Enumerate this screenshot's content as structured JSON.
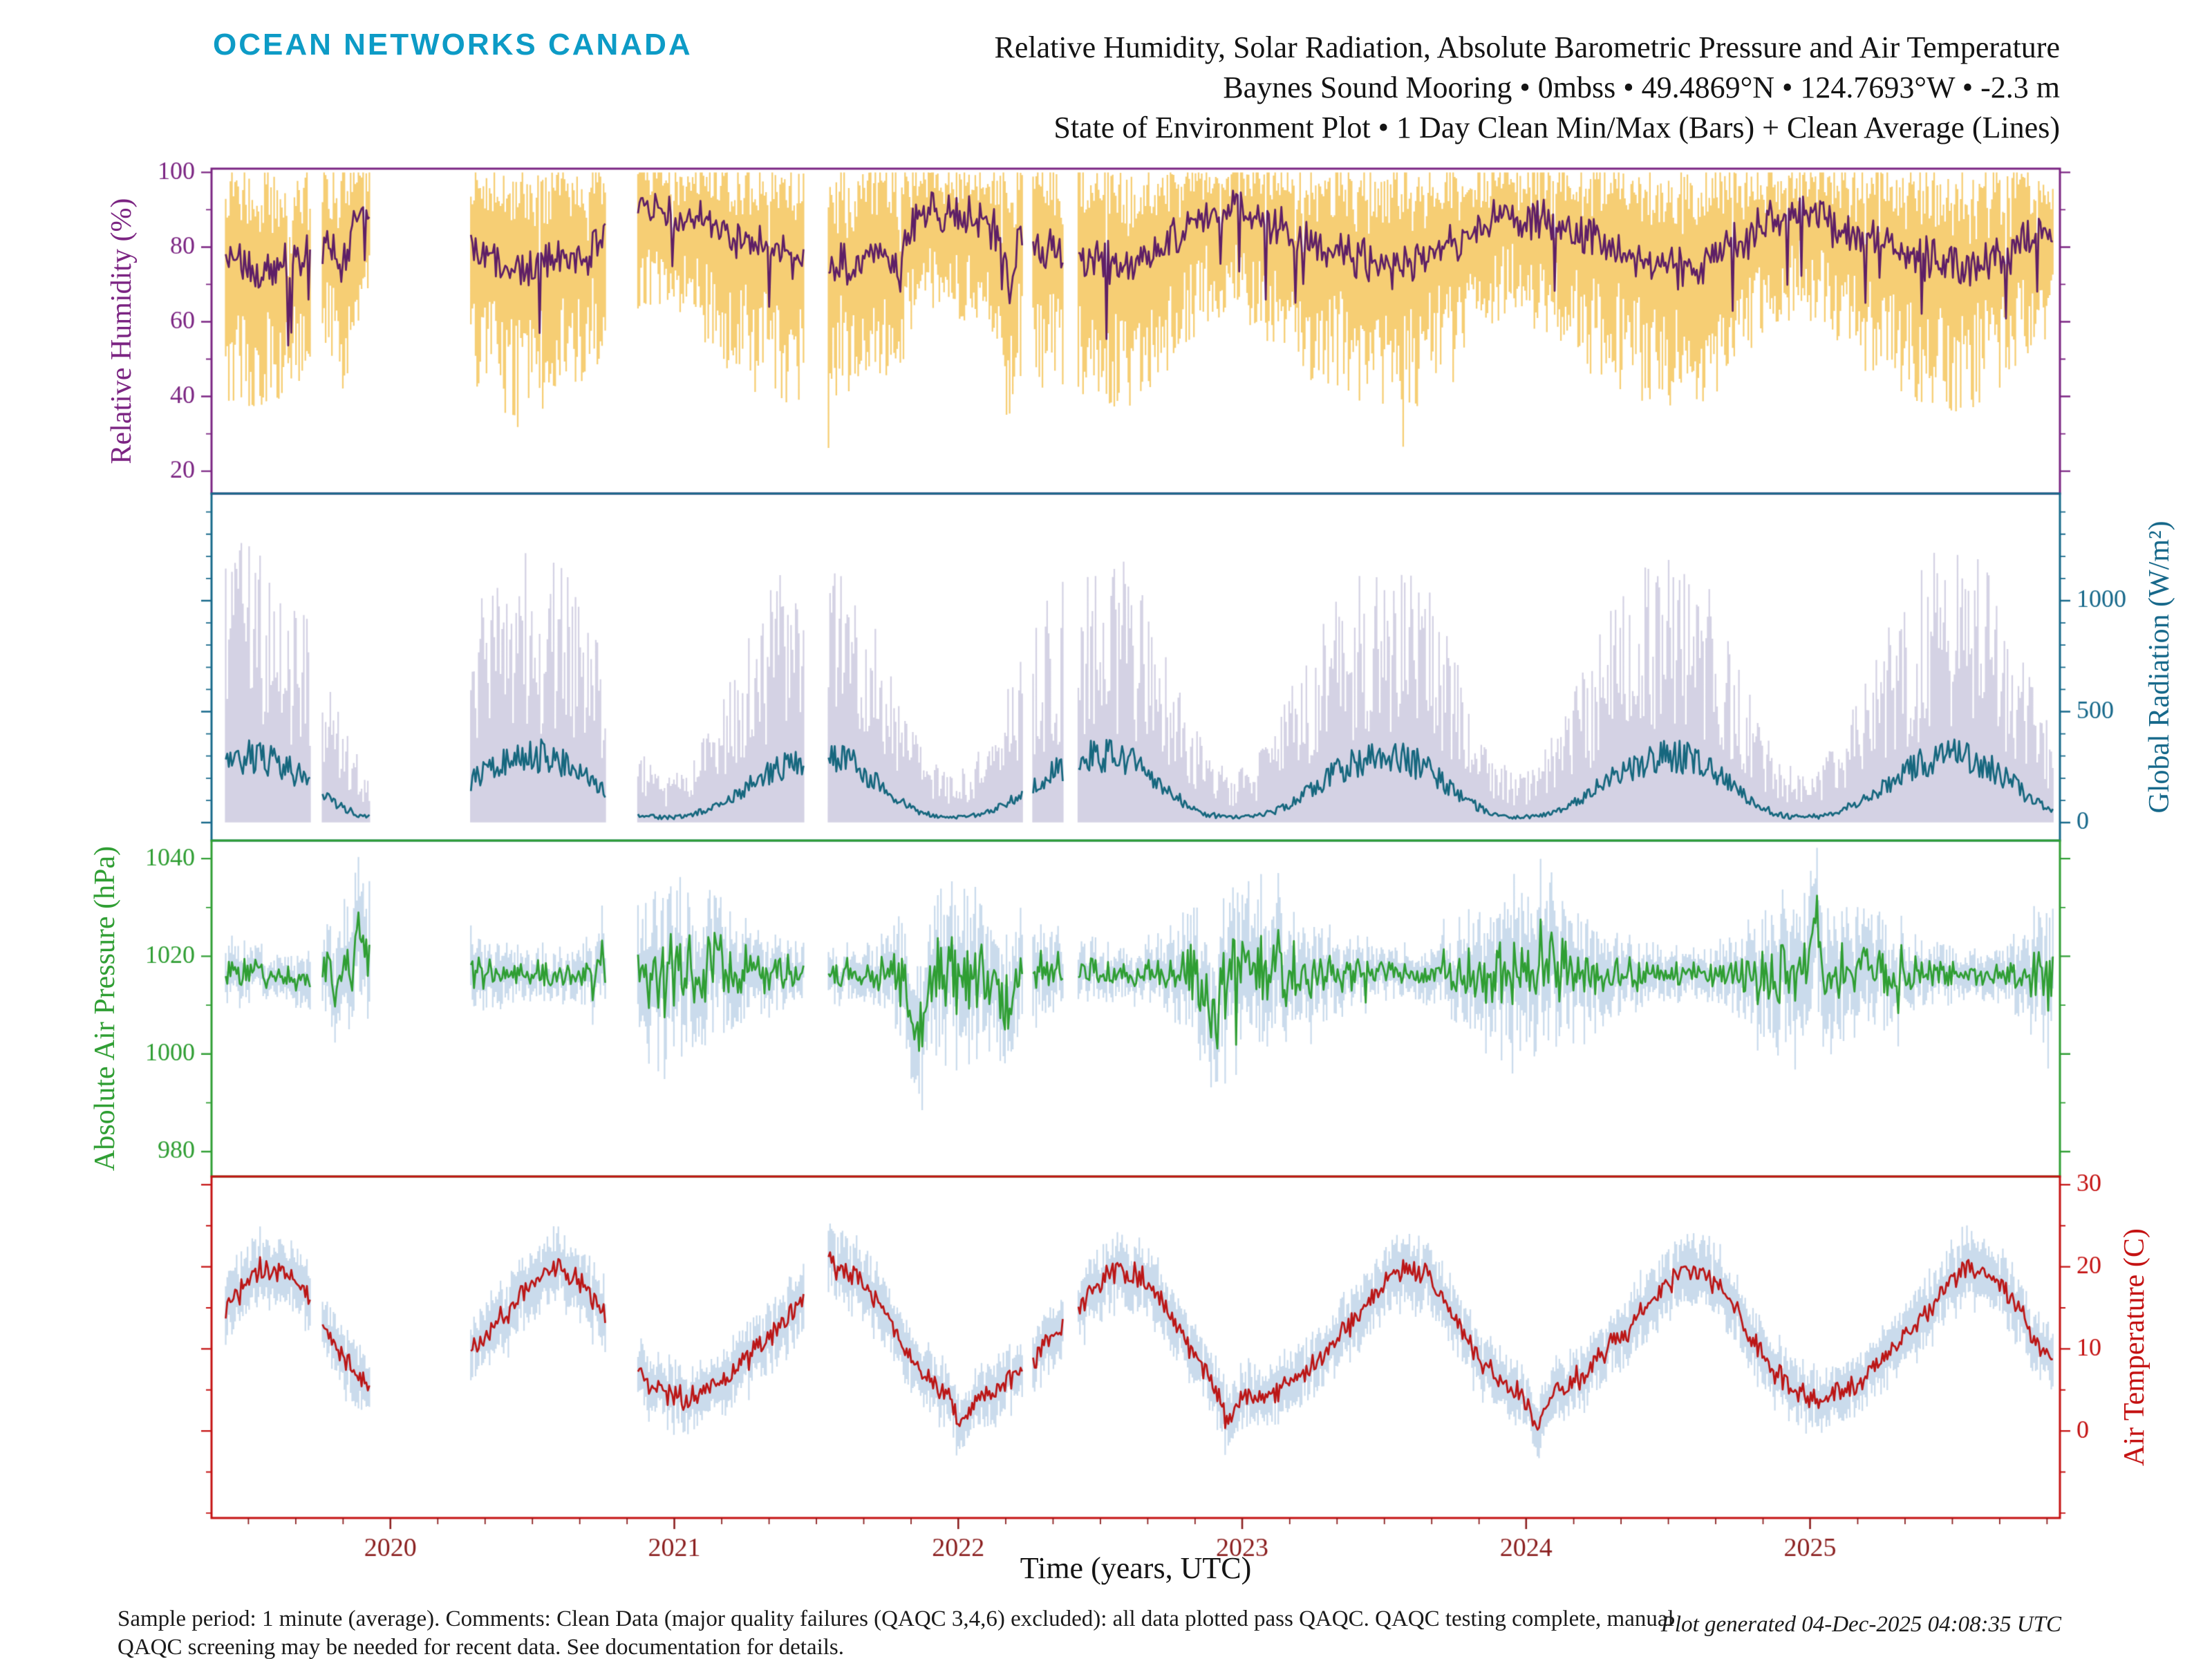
{
  "header": {
    "logo": "OCEAN NETWORKS CANADA",
    "title_line1": "Relative Humidity, Solar Radiation, Absolute Barometric Pressure and Air Temperature",
    "title_line2": "Baynes Sound Mooring • 0mbss • 49.4869°N • 124.7693°W • -2.3 m",
    "title_line3": "State of Environment Plot • 1 Day Clean Min/Max (Bars) + Clean Average (Lines)"
  },
  "footer": {
    "note_line1": "Sample period: 1 minute (average). Comments: Clean Data (major quality failures (QAQC 3,4,6) excluded): all data plotted pass QAQC. QAQC testing complete, manual",
    "note_line2": "QAQC screening may be needed for recent data. See documentation for details.",
    "generated": "Plot generated 04-Dec-2025 04:08:35 UTC"
  },
  "chart_data": {
    "type": "line",
    "title": "Relative Humidity, Solar Radiation, Absolute Barometric Pressure and Air Temperature — Baynes Sound Mooring, 0mbss, 49.4869°N, 124.7693°W, -2.3 m",
    "subtitle": "State of Environment Plot: 1 Day Clean Min/Max (Bars) + Clean Average (Lines)",
    "x_axis": {
      "label": "Time (years, UTC)",
      "range": [
        2019.37,
        2025.88
      ],
      "major_ticks": [
        2020,
        2021,
        2022,
        2023,
        2024,
        2025
      ],
      "minor_step": 0.1667,
      "tick_color": "#8b1f1f"
    },
    "data_start": 2019.42,
    "data_end": 2025.86,
    "gaps": [
      [
        2019.72,
        2019.76
      ],
      [
        2019.93,
        2020.28
      ],
      [
        2020.76,
        2020.87
      ],
      [
        2021.46,
        2021.54
      ],
      [
        2022.23,
        2022.26
      ],
      [
        2022.37,
        2022.42
      ]
    ],
    "legend": {
      "bars": "1 Day Clean Min/Max",
      "lines": "Clean Average"
    },
    "panels": [
      {
        "id": "humidity",
        "ylabel": "Relative Humidity (%)",
        "side": "left",
        "color": "#7b2482",
        "line_color": "#5e1f66",
        "band_color": "#f5c65c",
        "band_alpha": 0.85,
        "yticks": [
          20,
          40,
          60,
          80,
          100
        ],
        "minor_step": 10,
        "yrange": [
          14,
          101
        ],
        "monthly_avg": [
          88,
          85,
          83,
          80,
          78,
          77,
          75,
          76,
          79,
          84,
          88,
          89
        ],
        "monthly_min": [
          62,
          58,
          52,
          48,
          45,
          44,
          42,
          44,
          50,
          58,
          64,
          66
        ],
        "monthly_max": [
          100,
          100,
          100,
          100,
          100,
          99,
          98,
          98,
          99,
          100,
          100,
          100
        ],
        "events": [
          [
            2019.83,
            0.05,
            -12
          ],
          [
            2020.45,
            0.1,
            -5
          ],
          [
            2021.79,
            0.06,
            -8
          ],
          [
            2022.18,
            0.04,
            -15
          ]
        ]
      },
      {
        "id": "radiation",
        "ylabel": "Global Radiation (W/m²)",
        "side": "right",
        "color": "#16688a",
        "line_color": "#16677e",
        "band_color": "#c9c7dd",
        "band_alpha": 0.8,
        "yticks": [
          0,
          500,
          1000
        ],
        "minor_step": 100,
        "yrange": [
          -81,
          1483
        ],
        "monthly_avg": [
          30,
          60,
          120,
          200,
          265,
          305,
          310,
          270,
          190,
          100,
          40,
          25
        ],
        "monthly_min": [
          0,
          0,
          0,
          0,
          0,
          0,
          0,
          0,
          0,
          0,
          0,
          0
        ],
        "monthly_max": [
          250,
          420,
          650,
          880,
          1020,
          1150,
          1140,
          1040,
          840,
          540,
          300,
          200
        ],
        "events": []
      },
      {
        "id": "pressure",
        "ylabel": "Absolute Air Pressure (hPa)",
        "side": "left",
        "color": "#2f9e33",
        "line_color": "#2f9e33",
        "band_color": "#b8cfe6",
        "band_alpha": 0.75,
        "yticks": [
          980,
          1000,
          1020,
          1040
        ],
        "minor_step": 10,
        "yrange": [
          974.9,
          1043.7
        ],
        "monthly_avg": [
          1017,
          1017,
          1016.5,
          1016.5,
          1016.5,
          1016.5,
          1016.5,
          1016,
          1016,
          1016,
          1015.5,
          1016.5
        ],
        "monthly_half": [
          16,
          14,
          12,
          9,
          7,
          6,
          5,
          5,
          7,
          11,
          15,
          16
        ],
        "events": [
          [
            2019.9,
            0.05,
            10
          ],
          [
            2021.86,
            0.05,
            -12
          ],
          [
            2022.16,
            0.04,
            -8
          ],
          [
            2022.9,
            0.05,
            -10
          ],
          [
            2025.02,
            0.04,
            14
          ]
        ]
      },
      {
        "id": "temperature",
        "ylabel": "Air Temperature (C)",
        "side": "right",
        "color": "#c41111",
        "line_color": "#bb1616",
        "band_color": "#b8cfe6",
        "band_alpha": 0.75,
        "yticks": [
          0,
          10,
          20,
          30
        ],
        "minor_step": 5,
        "yrange": [
          -10.6,
          31
        ],
        "monthly_avg": [
          4,
          5,
          7,
          10,
          13,
          16.5,
          19.5,
          19.5,
          16.5,
          11.5,
          7,
          4.5
        ],
        "monthly_half": [
          3.5,
          3.5,
          3.5,
          3.5,
          4,
          4,
          4,
          4,
          4,
          3.5,
          3.5,
          3.5
        ],
        "events": [
          [
            2021.52,
            0.06,
            3.5
          ],
          [
            2022.01,
            0.04,
            -4
          ],
          [
            2022.95,
            0.05,
            -4
          ],
          [
            2024.04,
            0.05,
            -4
          ]
        ]
      }
    ]
  }
}
